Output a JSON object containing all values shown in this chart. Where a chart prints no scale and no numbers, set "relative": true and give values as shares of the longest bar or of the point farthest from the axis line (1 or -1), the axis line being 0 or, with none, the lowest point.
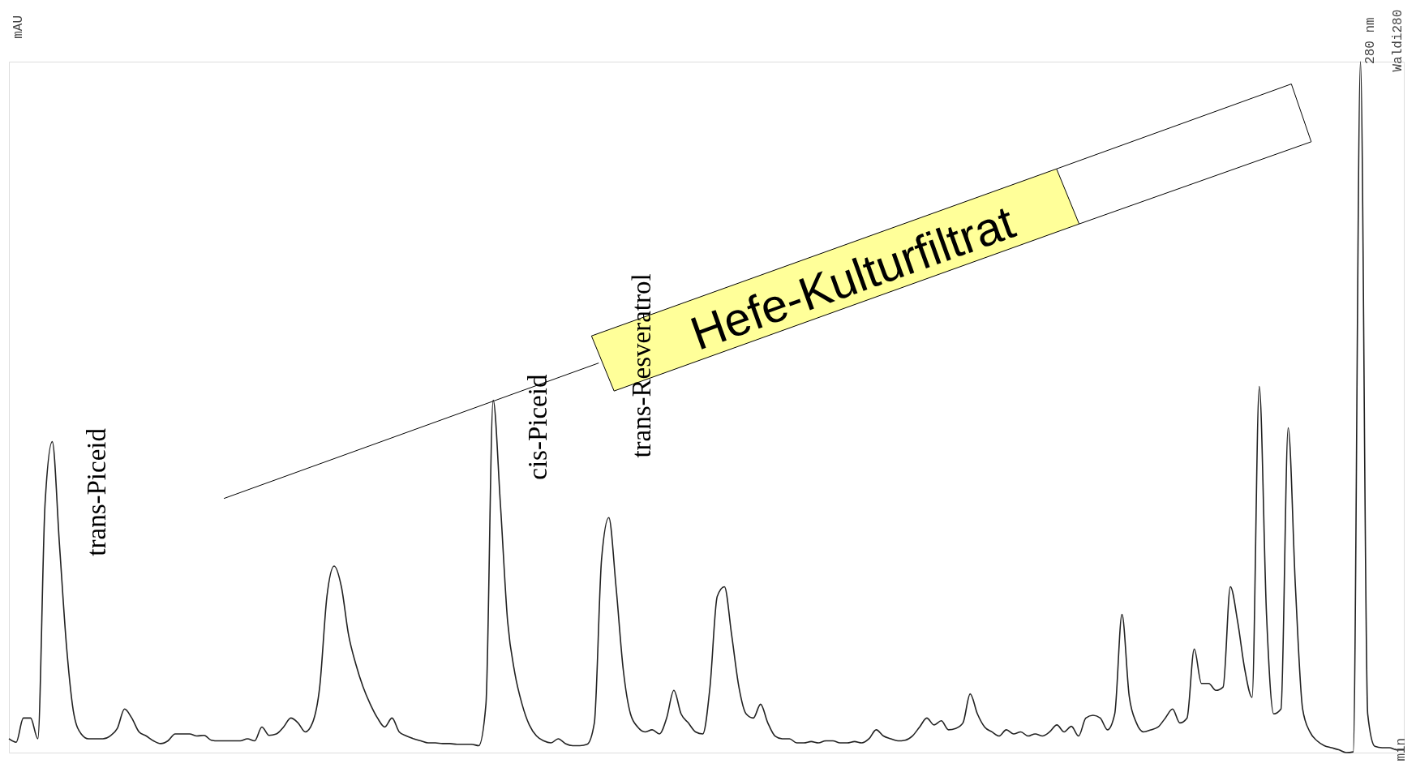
{
  "chart_data": {
    "type": "line",
    "relative": true,
    "ylabel": "mAU",
    "annotations": [
      "trans-Piceid",
      "cis-Piceid",
      "trans-Resveratrol",
      "Hefe-Kulturfiltrat",
      "280 nm",
      "Waldi280",
      "min"
    ],
    "categories": [
      null,
      null,
      null,
      null,
      null,
      null,
      null,
      null,
      null,
      null,
      null,
      null,
      null,
      null,
      null,
      null,
      null,
      null,
      null,
      null,
      null,
      null,
      null,
      null,
      null,
      null,
      null,
      null,
      null,
      null,
      null,
      null,
      null,
      null,
      null,
      null,
      null,
      null,
      null,
      null,
      null,
      null,
      null,
      null,
      null,
      null,
      null,
      null,
      null,
      null,
      null,
      null,
      null,
      null,
      null,
      null,
      null,
      null,
      null,
      null,
      null,
      null,
      null,
      null,
      null,
      null,
      null,
      null,
      null,
      null,
      null,
      null,
      null,
      null,
      null,
      null,
      null,
      null,
      null,
      null,
      null,
      null,
      null,
      null,
      null,
      null,
      null,
      null,
      null,
      null,
      null,
      null,
      null,
      null,
      null,
      null,
      null,
      null,
      null,
      null,
      null,
      null,
      null,
      null,
      null,
      null,
      null,
      null,
      null,
      null,
      null,
      null,
      null,
      null,
      null,
      null,
      null,
      null,
      null,
      null,
      null,
      null,
      null,
      null,
      null,
      null,
      null,
      null,
      null,
      null,
      null,
      null,
      null,
      null,
      null,
      null,
      null,
      null,
      null,
      null,
      null,
      null,
      null,
      null,
      null,
      null,
      null,
      null,
      null,
      null,
      null,
      null,
      null,
      null,
      null,
      null,
      null,
      null,
      null,
      null,
      null,
      null,
      null,
      null,
      null,
      null,
      null,
      null,
      null,
      null,
      null,
      null,
      null,
      null,
      null,
      null,
      null,
      null,
      null,
      null,
      null,
      null,
      null,
      null,
      null,
      null,
      null,
      null,
      null,
      null,
      null,
      null,
      null,
      null
    ],
    "series": [
      {
        "color": "#222222",
        "values": [
          0.02,
          0.015,
          0.05,
          0.05,
          0.02,
          0.36,
          0.45,
          0.3,
          0.15,
          0.055,
          0.027,
          0.02,
          0.02,
          0.02,
          0.024,
          0.035,
          0.063,
          0.05,
          0.03,
          0.024,
          0.017,
          0.013,
          0.017,
          0.027,
          0.027,
          0.027,
          0.024,
          0.025,
          0.018,
          0.017,
          0.017,
          0.017,
          0.017,
          0.02,
          0.017,
          0.037,
          0.025,
          0.027,
          0.037,
          0.05,
          0.043,
          0.03,
          0.043,
          0.095,
          0.226,
          0.27,
          0.24,
          0.17,
          0.128,
          0.095,
          0.07,
          0.05,
          0.037,
          0.05,
          0.03,
          0.024,
          0.02,
          0.017,
          0.014,
          0.014,
          0.013,
          0.013,
          0.012,
          0.012,
          0.012,
          0.01,
          0.07,
          0.51,
          0.36,
          0.19,
          0.115,
          0.07,
          0.04,
          0.024,
          0.017,
          0.014,
          0.02,
          0.013,
          0.01,
          0.01,
          0.012,
          0.043,
          0.28,
          0.34,
          0.24,
          0.12,
          0.056,
          0.037,
          0.03,
          0.033,
          0.027,
          0.05,
          0.09,
          0.056,
          0.043,
          0.03,
          0.027,
          0.095,
          0.226,
          0.24,
          0.17,
          0.095,
          0.056,
          0.05,
          0.07,
          0.043,
          0.024,
          0.02,
          0.02,
          0.014,
          0.014,
          0.016,
          0.014,
          0.017,
          0.017,
          0.014,
          0.014,
          0.016,
          0.014,
          0.02,
          0.033,
          0.024,
          0.02,
          0.017,
          0.018,
          0.024,
          0.037,
          0.05,
          0.04,
          0.046,
          0.033,
          0.035,
          0.043,
          0.085,
          0.056,
          0.037,
          0.03,
          0.024,
          0.033,
          0.027,
          0.03,
          0.024,
          0.027,
          0.024,
          0.03,
          0.04,
          0.03,
          0.038,
          0.024,
          0.05,
          0.054,
          0.05,
          0.033,
          0.056,
          0.2,
          0.082,
          0.043,
          0.03,
          0.033,
          0.037,
          0.05,
          0.063,
          0.043,
          0.05,
          0.15,
          0.1,
          0.1,
          0.09,
          0.095,
          0.24,
          0.19,
          0.12,
          0.08,
          0.53,
          0.2,
          0.056,
          0.063,
          0.47,
          0.24,
          0.063,
          0.03,
          0.017,
          0.01,
          0.007,
          0.004,
          0,
          0.001,
          1,
          0.056,
          0.009,
          0.007,
          0.007,
          0.004,
          0.004
        ]
      }
    ]
  }
}
